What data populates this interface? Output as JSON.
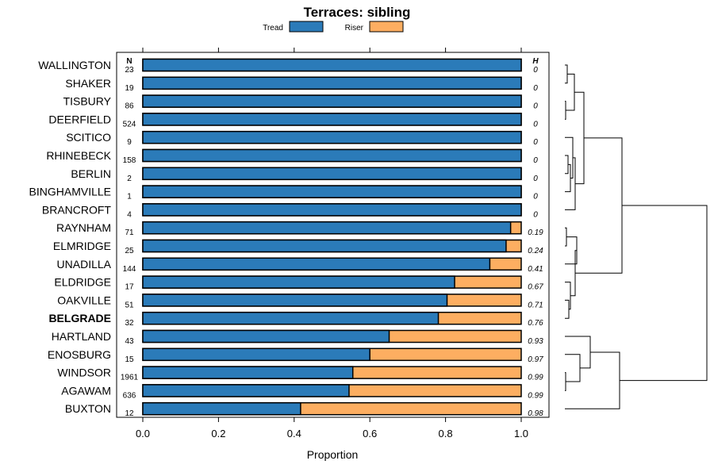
{
  "chart_data": {
    "type": "bar",
    "stacked": true,
    "orientation": "horizontal",
    "title": "Terraces: sibling",
    "xlabel": "Proportion",
    "xlim": [
      0,
      1
    ],
    "x_ticks": [
      "0.0",
      "0.2",
      "0.4",
      "0.6",
      "0.8",
      "1.0"
    ],
    "x_tick_values": [
      0,
      0.2,
      0.4,
      0.6,
      0.8,
      1.0
    ],
    "n_header": "N",
    "h_header": "H",
    "series": [
      {
        "name": "Tread",
        "color": "#2b7bb9"
      },
      {
        "name": "Riser",
        "color": "#fdae61"
      }
    ],
    "highlight": "BELGRADE",
    "rows": [
      {
        "label": "WALLINGTON",
        "n": "23",
        "h": "0",
        "tread": 1.0
      },
      {
        "label": "SHAKER",
        "n": "19",
        "h": "0",
        "tread": 1.0
      },
      {
        "label": "TISBURY",
        "n": "86",
        "h": "0",
        "tread": 1.0
      },
      {
        "label": "DEERFIELD",
        "n": "524",
        "h": "0",
        "tread": 1.0
      },
      {
        "label": "SCITICO",
        "n": "9",
        "h": "0",
        "tread": 1.0
      },
      {
        "label": "RHINEBECK",
        "n": "158",
        "h": "0",
        "tread": 1.0
      },
      {
        "label": "BERLIN",
        "n": "2",
        "h": "0",
        "tread": 1.0
      },
      {
        "label": "BINGHAMVILLE",
        "n": "1",
        "h": "0",
        "tread": 1.0
      },
      {
        "label": "BRANCROFT",
        "n": "4",
        "h": "0",
        "tread": 1.0
      },
      {
        "label": "RAYNHAM",
        "n": "71",
        "h": "0.19",
        "tread": 0.972
      },
      {
        "label": "ELMRIDGE",
        "n": "25",
        "h": "0.24",
        "tread": 0.96
      },
      {
        "label": "UNADILLA",
        "n": "144",
        "h": "0.41",
        "tread": 0.917
      },
      {
        "label": "ELDRIDGE",
        "n": "17",
        "h": "0.67",
        "tread": 0.824
      },
      {
        "label": "OAKVILLE",
        "n": "51",
        "h": "0.71",
        "tread": 0.804
      },
      {
        "label": "BELGRADE",
        "n": "32",
        "h": "0.76",
        "tread": 0.781
      },
      {
        "label": "HARTLAND",
        "n": "43",
        "h": "0.93",
        "tread": 0.651
      },
      {
        "label": "ENOSBURG",
        "n": "15",
        "h": "0.97",
        "tread": 0.6
      },
      {
        "label": "WINDSOR",
        "n": "1961",
        "h": "0.99",
        "tread": 0.555
      },
      {
        "label": "AGAWAM",
        "n": "636",
        "h": "0.99",
        "tread": 0.545
      },
      {
        "label": "BUXTON",
        "n": "12",
        "h": "0.98",
        "tread": 0.417
      }
    ],
    "dendrogram_present": true
  }
}
